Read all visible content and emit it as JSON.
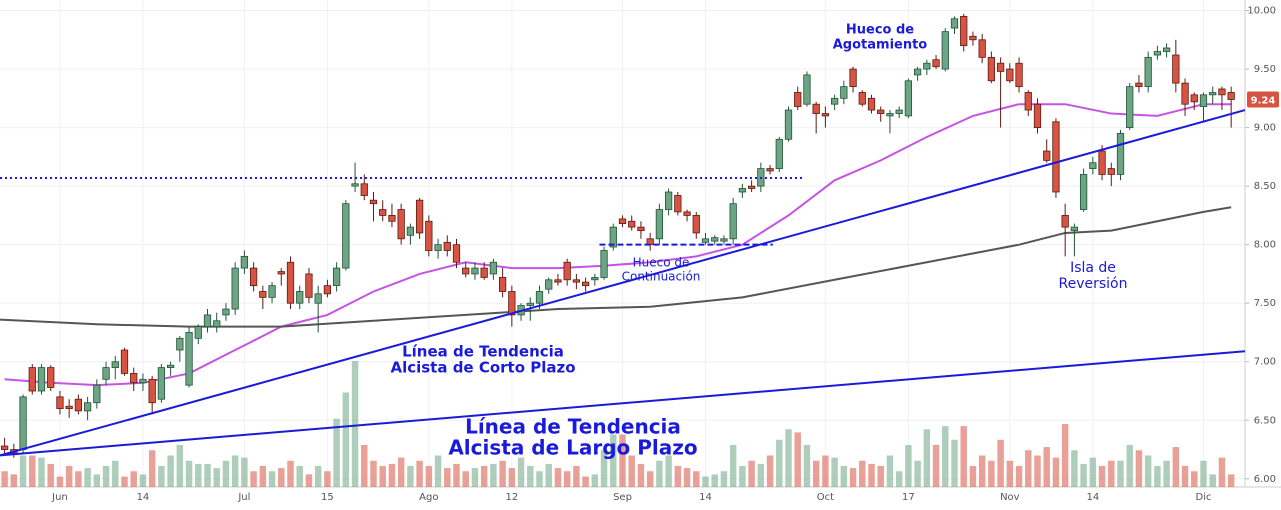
{
  "chart_data": {
    "type": "candlestick",
    "xlim": [
      -0.5,
      134.5
    ],
    "ylim": [
      5.93,
      10.09
    ],
    "yticks": [
      {
        "value": 6,
        "label": "6.00"
      },
      {
        "value": 6.5,
        "label": "6.50"
      },
      {
        "value": 7,
        "label": "7.00"
      },
      {
        "value": 7.5,
        "label": "7.50"
      },
      {
        "value": 8,
        "label": "8.00"
      },
      {
        "value": 8.5,
        "label": "8.50"
      },
      {
        "value": 9,
        "label": "9.00"
      },
      {
        "value": 9.5,
        "label": "9.50"
      },
      {
        "value": 10,
        "label": "10.00"
      }
    ],
    "xticks": [
      {
        "value": 6,
        "label": "Jun"
      },
      {
        "value": 15,
        "label": "14"
      },
      {
        "value": 26,
        "label": "Jul"
      },
      {
        "value": 35,
        "label": "15"
      },
      {
        "value": 46,
        "label": "Ago"
      },
      {
        "value": 55,
        "label": "12"
      },
      {
        "value": 67,
        "label": "Sep"
      },
      {
        "value": 76,
        "label": "14"
      },
      {
        "value": 89,
        "label": "Oct"
      },
      {
        "value": 98,
        "label": "17"
      },
      {
        "value": 109,
        "label": "Nov"
      },
      {
        "value": 118,
        "label": "14"
      },
      {
        "value": 130,
        "label": "Dic"
      }
    ],
    "grid": true,
    "up_color": "#6ba583",
    "down_color": "#d75442",
    "candles": [
      [
        6.28,
        6.35,
        6.2,
        6.25
      ],
      [
        6.25,
        6.3,
        6.18,
        6.22
      ],
      [
        6.25,
        6.72,
        6.22,
        6.7
      ],
      [
        6.95,
        6.98,
        6.72,
        6.75
      ],
      [
        6.75,
        6.98,
        6.72,
        6.95
      ],
      [
        6.95,
        6.97,
        6.75,
        6.78
      ],
      [
        6.7,
        6.75,
        6.55,
        6.6
      ],
      [
        6.62,
        6.68,
        6.52,
        6.6
      ],
      [
        6.68,
        6.72,
        6.55,
        6.58
      ],
      [
        6.58,
        6.7,
        6.5,
        6.65
      ],
      [
        6.65,
        6.85,
        6.6,
        6.8
      ],
      [
        6.85,
        7.0,
        6.8,
        6.95
      ],
      [
        6.95,
        7.05,
        6.85,
        7.0
      ],
      [
        7.1,
        7.12,
        6.88,
        6.9
      ],
      [
        6.9,
        6.95,
        6.75,
        6.82
      ],
      [
        6.82,
        6.9,
        6.75,
        6.85
      ],
      [
        6.85,
        6.88,
        6.55,
        6.65
      ],
      [
        6.68,
        6.98,
        6.65,
        6.95
      ],
      [
        6.95,
        7.0,
        6.88,
        6.97
      ],
      [
        7.1,
        7.22,
        7.0,
        7.2
      ],
      [
        6.8,
        7.3,
        6.78,
        7.25
      ],
      [
        7.2,
        7.32,
        7.15,
        7.3
      ],
      [
        7.3,
        7.45,
        7.25,
        7.4
      ],
      [
        7.3,
        7.42,
        7.25,
        7.35
      ],
      [
        7.4,
        7.5,
        7.35,
        7.45
      ],
      [
        7.45,
        7.85,
        7.4,
        7.8
      ],
      [
        7.8,
        7.95,
        7.75,
        7.9
      ],
      [
        7.8,
        7.85,
        7.6,
        7.65
      ],
      [
        7.6,
        7.65,
        7.45,
        7.55
      ],
      [
        7.55,
        7.68,
        7.5,
        7.65
      ],
      [
        7.77,
        7.8,
        7.65,
        7.75
      ],
      [
        7.85,
        7.9,
        7.45,
        7.5
      ],
      [
        7.5,
        7.65,
        7.45,
        7.6
      ],
      [
        7.75,
        7.8,
        7.5,
        7.55
      ],
      [
        7.5,
        7.65,
        7.25,
        7.58
      ],
      [
        7.65,
        7.7,
        7.55,
        7.58
      ],
      [
        7.65,
        7.85,
        7.6,
        7.8
      ],
      [
        7.8,
        8.38,
        7.78,
        8.35
      ],
      [
        8.5,
        8.7,
        8.45,
        8.52
      ],
      [
        8.52,
        8.6,
        8.38,
        8.42
      ],
      [
        8.38,
        8.45,
        8.2,
        8.35
      ],
      [
        8.3,
        8.38,
        8.2,
        8.25
      ],
      [
        8.25,
        8.35,
        8.15,
        8.2
      ],
      [
        8.3,
        8.35,
        8.0,
        8.05
      ],
      [
        8.08,
        8.18,
        8.0,
        8.15
      ],
      [
        8.38,
        8.4,
        8.05,
        8.1
      ],
      [
        8.2,
        8.25,
        7.9,
        7.95
      ],
      [
        7.95,
        8.05,
        7.88,
        8.0
      ],
      [
        8.02,
        8.08,
        7.9,
        7.95
      ],
      [
        8.0,
        8.05,
        7.8,
        7.85
      ],
      [
        7.8,
        7.85,
        7.72,
        7.75
      ],
      [
        7.75,
        7.85,
        7.7,
        7.8
      ],
      [
        7.8,
        7.85,
        7.7,
        7.72
      ],
      [
        7.75,
        7.88,
        7.7,
        7.85
      ],
      [
        7.72,
        7.8,
        7.55,
        7.6
      ],
      [
        7.6,
        7.65,
        7.3,
        7.4
      ],
      [
        7.4,
        7.5,
        7.35,
        7.48
      ],
      [
        7.48,
        7.55,
        7.35,
        7.5
      ],
      [
        7.5,
        7.65,
        7.45,
        7.6
      ],
      [
        7.62,
        7.72,
        7.58,
        7.7
      ],
      [
        7.7,
        7.75,
        7.65,
        7.68
      ],
      [
        7.85,
        7.88,
        7.65,
        7.7
      ],
      [
        7.7,
        7.75,
        7.62,
        7.68
      ],
      [
        7.68,
        7.72,
        7.6,
        7.65
      ],
      [
        7.7,
        7.75,
        7.65,
        7.72
      ],
      [
        7.72,
        7.98,
        7.7,
        7.95
      ],
      [
        7.98,
        8.18,
        7.95,
        8.15
      ],
      [
        8.22,
        8.25,
        8.15,
        8.18
      ],
      [
        8.2,
        8.25,
        8.12,
        8.15
      ],
      [
        8.15,
        8.2,
        8.05,
        8.12
      ],
      [
        8.05,
        8.1,
        7.95,
        8.0
      ],
      [
        8.05,
        8.35,
        8.0,
        8.3
      ],
      [
        8.3,
        8.48,
        8.25,
        8.45
      ],
      [
        8.42,
        8.45,
        8.25,
        8.28
      ],
      [
        8.28,
        8.3,
        8.2,
        8.25
      ],
      [
        8.25,
        8.28,
        8.05,
        8.1
      ],
      [
        8.02,
        8.1,
        8.0,
        8.05
      ],
      [
        8.03,
        8.08,
        8.0,
        8.06
      ],
      [
        8.03,
        8.08,
        8.0,
        8.05
      ],
      [
        8.05,
        8.4,
        8.0,
        8.35
      ],
      [
        8.45,
        8.52,
        8.4,
        8.48
      ],
      [
        8.5,
        8.55,
        8.45,
        8.48
      ],
      [
        8.5,
        8.7,
        8.45,
        8.65
      ],
      [
        8.65,
        8.68,
        8.6,
        8.63
      ],
      [
        8.65,
        8.92,
        8.62,
        8.9
      ],
      [
        8.9,
        9.18,
        8.88,
        9.15
      ],
      [
        9.3,
        9.35,
        9.15,
        9.18
      ],
      [
        9.2,
        9.48,
        9.18,
        9.45
      ],
      [
        9.2,
        9.22,
        8.95,
        9.12
      ],
      [
        9.12,
        9.18,
        9.0,
        9.1
      ],
      [
        9.2,
        9.28,
        9.15,
        9.25
      ],
      [
        9.25,
        9.4,
        9.2,
        9.35
      ],
      [
        9.5,
        9.52,
        9.3,
        9.35
      ],
      [
        9.3,
        9.32,
        9.18,
        9.2
      ],
      [
        9.25,
        9.28,
        9.12,
        9.15
      ],
      [
        9.15,
        9.18,
        9.05,
        9.12
      ],
      [
        9.1,
        9.15,
        8.95,
        9.12
      ],
      [
        9.12,
        9.18,
        9.08,
        9.15
      ],
      [
        9.1,
        9.42,
        9.08,
        9.4
      ],
      [
        9.45,
        9.52,
        9.4,
        9.5
      ],
      [
        9.5,
        9.58,
        9.45,
        9.55
      ],
      [
        9.58,
        9.62,
        9.5,
        9.52
      ],
      [
        9.5,
        9.85,
        9.48,
        9.82
      ],
      [
        9.85,
        9.95,
        9.8,
        9.93
      ],
      [
        9.95,
        9.97,
        9.65,
        9.7
      ],
      [
        9.78,
        9.82,
        9.7,
        9.75
      ],
      [
        9.75,
        9.8,
        9.55,
        9.6
      ],
      [
        9.6,
        9.65,
        9.38,
        9.4
      ],
      [
        9.55,
        9.6,
        9.0,
        9.48
      ],
      [
        9.5,
        9.55,
        9.38,
        9.4
      ],
      [
        9.55,
        9.6,
        9.3,
        9.35
      ],
      [
        9.3,
        9.32,
        9.1,
        9.15
      ],
      [
        9.2,
        9.25,
        8.95,
        9.0
      ],
      [
        8.8,
        8.9,
        8.7,
        8.72
      ],
      [
        9.05,
        9.08,
        8.4,
        8.45
      ],
      [
        8.25,
        8.35,
        7.9,
        8.15
      ],
      [
        8.12,
        8.18,
        7.9,
        8.15
      ],
      [
        8.3,
        8.65,
        8.28,
        8.6
      ],
      [
        8.65,
        8.75,
        8.6,
        8.7
      ],
      [
        8.8,
        8.85,
        8.55,
        8.6
      ],
      [
        8.65,
        8.7,
        8.5,
        8.6
      ],
      [
        8.6,
        8.98,
        8.55,
        8.95
      ],
      [
        9.0,
        9.38,
        8.98,
        9.35
      ],
      [
        9.38,
        9.45,
        9.3,
        9.35
      ],
      [
        9.35,
        9.65,
        9.3,
        9.6
      ],
      [
        9.62,
        9.7,
        9.58,
        9.65
      ],
      [
        9.65,
        9.72,
        9.6,
        9.68
      ],
      [
        9.62,
        9.75,
        9.3,
        9.38
      ],
      [
        9.38,
        9.42,
        9.1,
        9.2
      ],
      [
        9.28,
        9.3,
        9.15,
        9.22
      ],
      [
        9.18,
        9.3,
        9.05,
        9.28
      ],
      [
        9.28,
        9.35,
        9.2,
        9.3
      ],
      [
        9.33,
        9.35,
        9.15,
        9.28
      ],
      [
        9.3,
        9.35,
        9.0,
        9.24
      ]
    ],
    "volume": [
      15,
      12,
      30,
      30,
      28,
      22,
      10,
      20,
      15,
      18,
      12,
      20,
      25,
      10,
      15,
      12,
      35,
      20,
      30,
      40,
      25,
      22,
      22,
      18,
      25,
      30,
      28,
      15,
      20,
      15,
      18,
      25,
      20,
      12,
      20,
      15,
      65,
      90,
      120,
      40,
      25,
      20,
      22,
      28,
      20,
      25,
      20,
      30,
      18,
      22,
      15,
      18,
      20,
      22,
      25,
      18,
      28,
      20,
      15,
      22,
      18,
      15,
      20,
      10,
      12,
      35,
      50,
      50,
      30,
      22,
      15,
      25,
      30,
      20,
      18,
      15,
      10,
      12,
      15,
      40,
      20,
      25,
      22,
      30,
      45,
      55,
      52,
      40,
      25,
      30,
      28,
      20,
      18,
      25,
      22,
      20,
      30,
      15,
      40,
      25,
      55,
      40,
      58,
      45,
      58,
      20,
      30,
      25,
      45,
      25,
      20,
      35,
      30,
      38,
      28,
      60,
      35,
      22,
      28,
      20,
      25,
      25,
      40,
      35,
      30,
      20,
      25,
      38,
      20,
      15,
      25,
      12,
      28,
      12
    ],
    "series": [
      {
        "color": "#c653e6",
        "x": [
          0,
          5,
          10,
          15,
          20,
          25,
          30,
          35,
          40,
          45,
          50,
          55,
          60,
          65,
          70,
          75,
          80,
          85,
          90,
          95,
          100,
          105,
          110,
          115,
          120,
          125,
          130,
          133
        ],
        "values": [
          6.85,
          6.82,
          6.8,
          6.82,
          6.9,
          7.1,
          7.3,
          7.4,
          7.6,
          7.75,
          7.85,
          7.8,
          7.8,
          7.82,
          7.85,
          7.9,
          8.0,
          8.25,
          8.55,
          8.72,
          8.92,
          9.1,
          9.2,
          9.2,
          9.12,
          9.1,
          9.2,
          9.2
        ]
      },
      {
        "color": "#555555",
        "x": [
          -0.5,
          10,
          20,
          30,
          40,
          50,
          60,
          70,
          80,
          90,
          100,
          110,
          115,
          120,
          125,
          130,
          133
        ],
        "values": [
          7.36,
          7.32,
          7.3,
          7.3,
          7.35,
          7.4,
          7.45,
          7.47,
          7.55,
          7.7,
          7.85,
          8.0,
          8.1,
          8.12,
          8.2,
          8.28,
          8.32
        ]
      }
    ],
    "trendlines": [
      {
        "color": "#1a1adb",
        "x": [
          -0.5,
          134.5
        ],
        "values": [
          6.2,
          9.15
        ]
      },
      {
        "color": "#1a1adb",
        "x": [
          -0.5,
          134.5
        ],
        "values": [
          6.2,
          7.09
        ]
      }
    ],
    "levels": [
      {
        "color": "#1a1adb",
        "style": "dotted",
        "value": 8.57,
        "x": [
          -0.5,
          86.5
        ]
      },
      {
        "color": "#1a1adb",
        "style": "dashed",
        "value": 8.0,
        "x": [
          64.5,
          83.3
        ]
      }
    ],
    "annotations": [
      [
        "Hueco de",
        "Agotamiento"
      ],
      [
        "Hueco de",
        "Continuación"
      ],
      [
        "Isla de",
        "Reversión"
      ],
      [
        "Línea de Tendencia",
        "Alcista de Corto Plazo"
      ],
      [
        "Línea de Tendencia",
        "Alcista de Largo Plazo"
      ]
    ],
    "last_price": {
      "value": 9.24,
      "label": "9.24"
    }
  }
}
